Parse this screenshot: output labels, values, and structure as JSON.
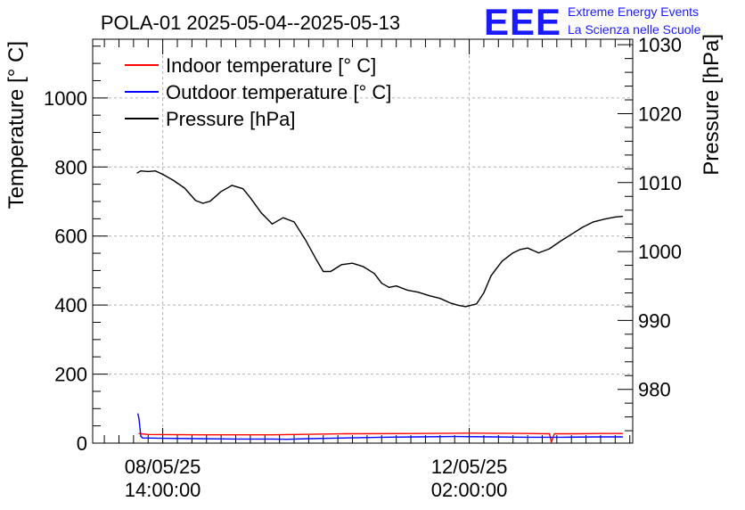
{
  "chart_data": {
    "type": "line",
    "title": "POLA-01 2025-05-04--2025-05-13",
    "ylabel_left": "Temperature [° C]",
    "ylabel_right": "Pressure [hPa]",
    "ylim_left": [
      0,
      1170
    ],
    "ylim_right": [
      972.2,
      1030.8
    ],
    "y_left_ticks": [
      0,
      200,
      400,
      600,
      800,
      1000
    ],
    "y_right_ticks": [
      980,
      990,
      1000,
      1010,
      1020,
      1030
    ],
    "x_range_hours": [
      -19.2,
      128.8
    ],
    "x_ticks": [
      {
        "hour": 0,
        "date": "08/05/25",
        "time": "14:00:00"
      },
      {
        "hour": 84,
        "date": "12/05/25",
        "time": "02:00:00"
      }
    ],
    "legend": [
      {
        "label": "Indoor temperature [° C]",
        "color": "#ff0000"
      },
      {
        "label": "Outdoor temperature [° C]",
        "color": "#0000ff"
      },
      {
        "label": "Pressure [hPa]",
        "color": "#000000"
      }
    ],
    "series": [
      {
        "name": "Indoor temperature [° C]",
        "axis": "left",
        "color": "#ff0000",
        "x": [
          -6.5,
          -6,
          -4,
          10,
          30,
          50,
          70,
          84,
          100,
          106,
          106.5,
          107.3,
          108,
          113,
          120,
          126
        ],
        "values": [
          28,
          27,
          25,
          24,
          24,
          27,
          28,
          29,
          28,
          27,
          3,
          27,
          27,
          27,
          28,
          28
        ]
      },
      {
        "name": "Outdoor temperature [° C]",
        "axis": "left",
        "color": "#0000ff",
        "x": [
          -6.8,
          -6.5,
          -6,
          -5.5,
          0,
          10,
          20,
          30,
          34,
          40,
          50,
          60,
          70,
          80,
          90,
          100,
          110,
          120,
          126
        ],
        "values": [
          85,
          70,
          20,
          15,
          14,
          13,
          12,
          12,
          11,
          13,
          15,
          17,
          18,
          19,
          18,
          17,
          17,
          18,
          18
        ]
      },
      {
        "name": "Pressure [hPa]",
        "axis": "right",
        "color": "#000000",
        "x": [
          -7,
          -6,
          -4,
          -2,
          0,
          3,
          6,
          9,
          11,
          13,
          16,
          19,
          22,
          24,
          27,
          30,
          33,
          36,
          39,
          42,
          44,
          46,
          49,
          52,
          55,
          58,
          60,
          62,
          64,
          67,
          70,
          73,
          76,
          79,
          81,
          83,
          86,
          88,
          90,
          93,
          96,
          98,
          100,
          103,
          106,
          109,
          112,
          115,
          118,
          121,
          124,
          126
        ],
        "values": [
          1011.4,
          1011.7,
          1011.6,
          1011.7,
          1011.2,
          1010.3,
          1009.2,
          1007.4,
          1007.0,
          1007.3,
          1008.7,
          1009.6,
          1009.1,
          1007.8,
          1005.6,
          1004.0,
          1004.9,
          1004.3,
          1001.8,
          998.9,
          997.1,
          997.1,
          998.1,
          998.3,
          997.8,
          996.8,
          995.4,
          994.8,
          995.0,
          994.4,
          994.1,
          993.6,
          993.2,
          992.5,
          992.2,
          992.0,
          992.4,
          994.0,
          996.5,
          998.6,
          999.8,
          1000.3,
          1000.5,
          999.8,
          1000.4,
          1001.5,
          1002.5,
          1003.5,
          1004.3,
          1004.7,
          1005.0,
          1005.1
        ]
      }
    ]
  },
  "branding": {
    "logo": "EEE",
    "line1": "Extreme Energy Events",
    "line2": "La Scienza nelle Scuole"
  }
}
